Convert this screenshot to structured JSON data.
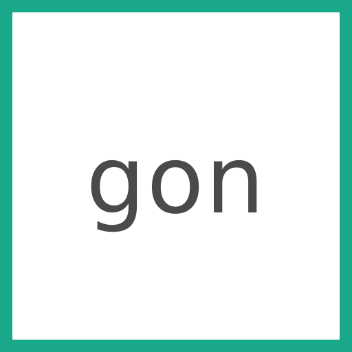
{
  "tile": {
    "word": "gon",
    "border_color": "#1aa88a",
    "text_color": "#4a4a4a",
    "background_color": "#ffffff"
  }
}
